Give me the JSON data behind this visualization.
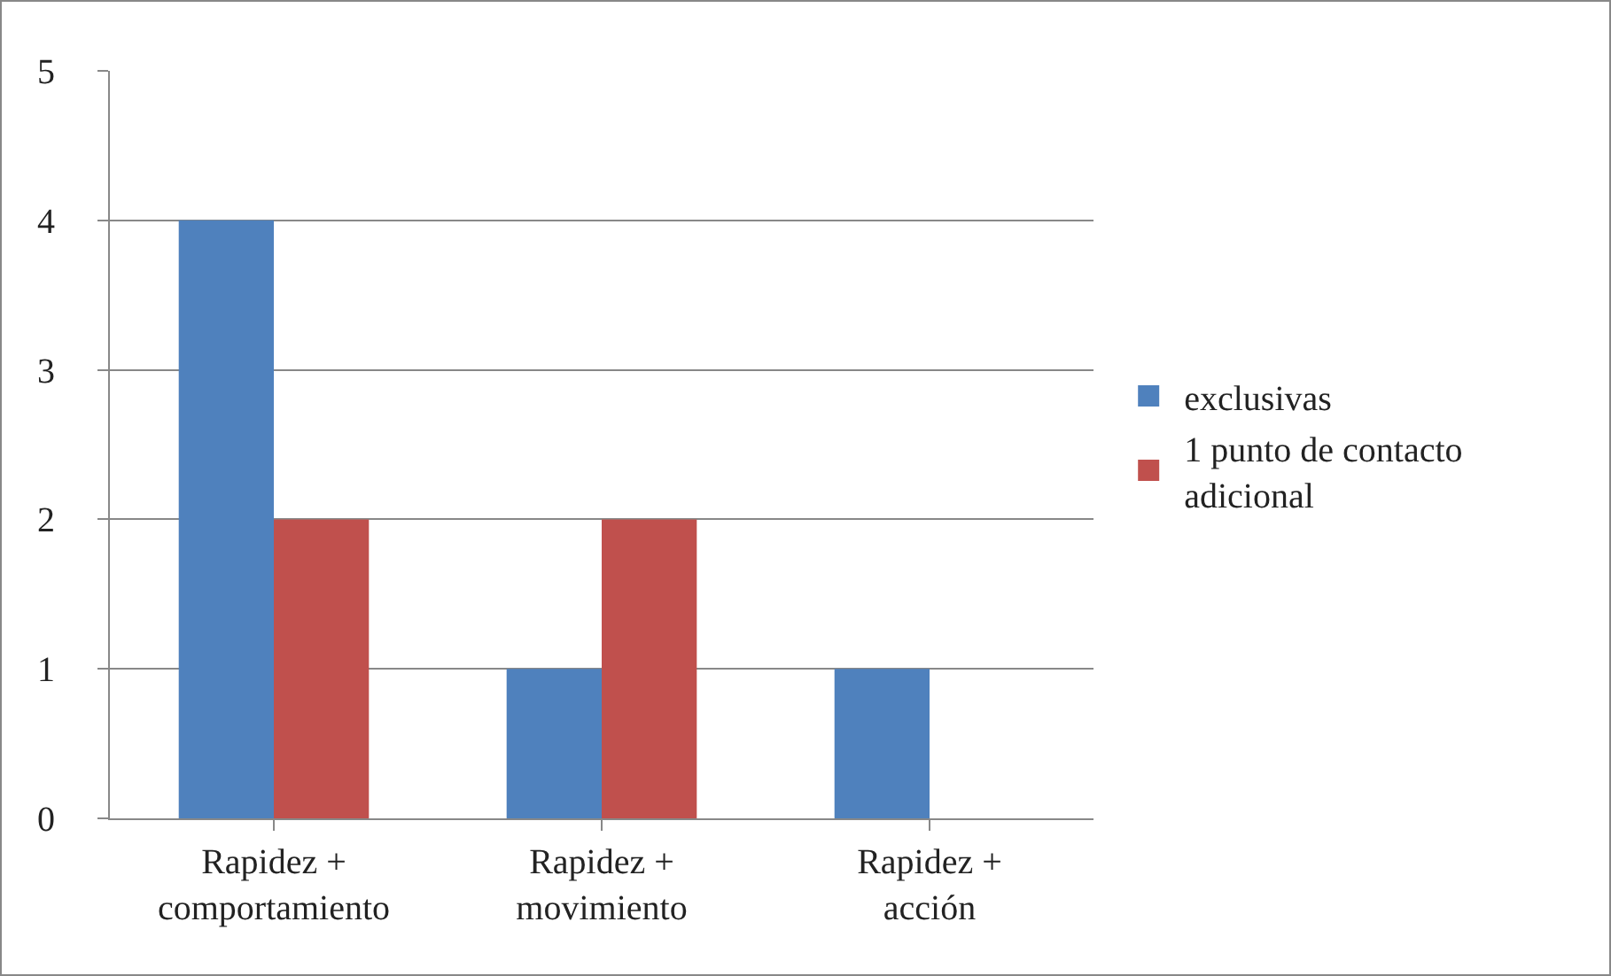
{
  "chart_data": {
    "type": "bar",
    "categories": [
      "Rapidez +\ncomportamiento",
      "Rapidez +\nmovimiento",
      "Rapidez +\nacción"
    ],
    "series": [
      {
        "name": "exclusivas",
        "color": "#4f81bd",
        "values": [
          4,
          1,
          1
        ]
      },
      {
        "name": "1 punto de contacto\nadicional",
        "color": "#c0504d",
        "values": [
          2,
          2,
          0
        ]
      }
    ],
    "ylim": [
      0,
      5
    ],
    "yticks": [
      0,
      1,
      2,
      3,
      4,
      5
    ],
    "grid": "y",
    "legend": "right"
  }
}
